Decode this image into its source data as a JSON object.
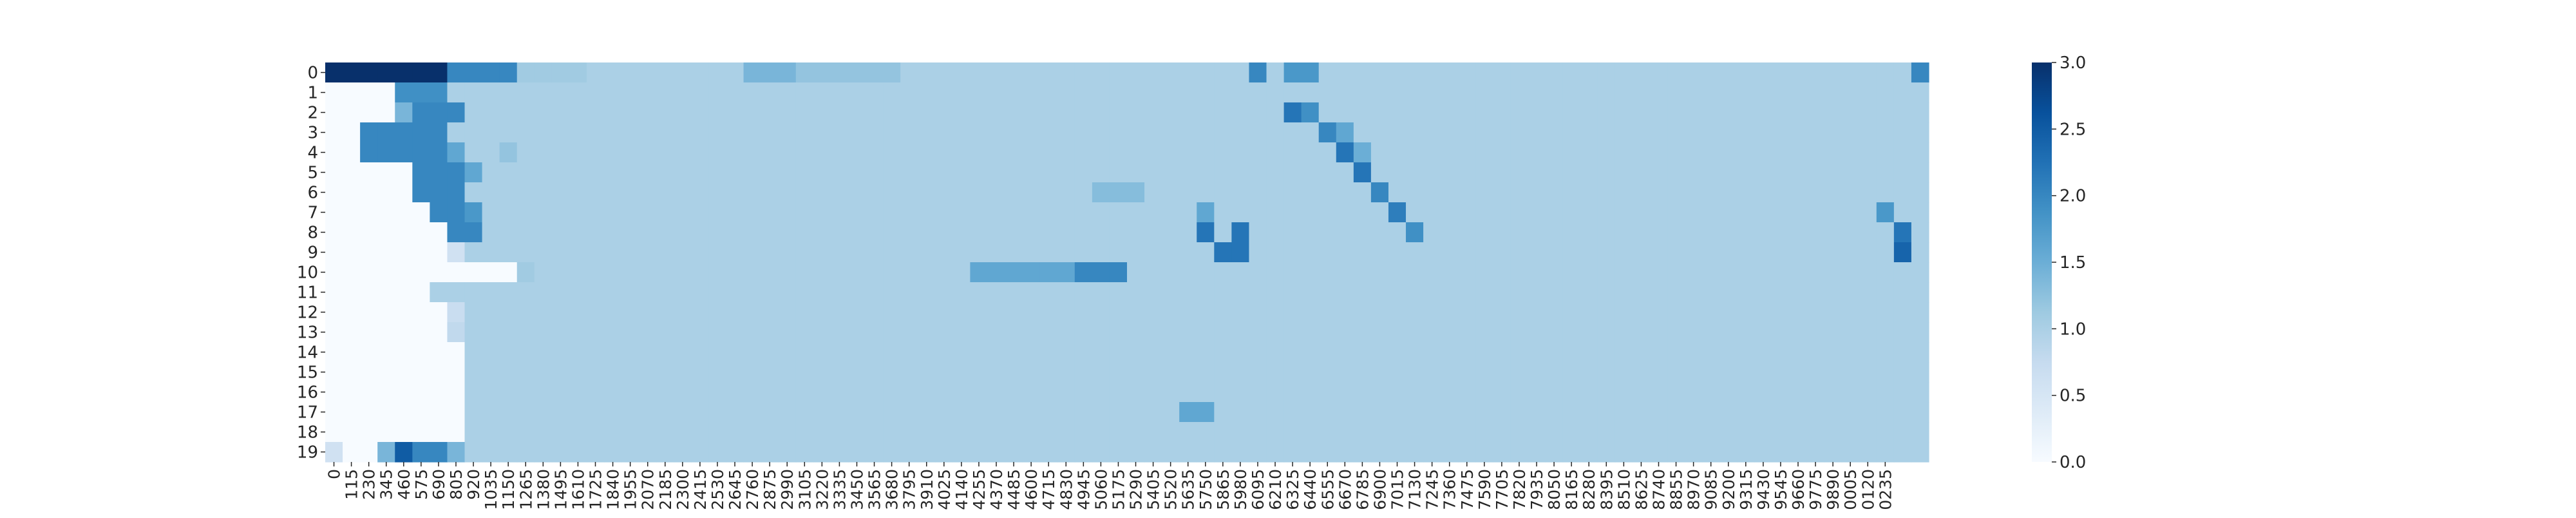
{
  "chart_data": {
    "type": "heatmap",
    "title": "",
    "xlabel": "",
    "ylabel": "",
    "colormap": "Blues",
    "vmin": 0.0,
    "vmax": 3.0,
    "colorbar_ticks": [
      "0.0",
      "0.5",
      "1.0",
      "1.5",
      "2.0",
      "2.5",
      "3.0"
    ],
    "rows": [
      "0",
      "1",
      "2",
      "3",
      "4",
      "5",
      "6",
      "7",
      "8",
      "9",
      "10",
      "11",
      "12",
      "13",
      "14",
      "15",
      "16",
      "17",
      "18",
      "19"
    ],
    "n_cols": 92,
    "x_tick_labels": [
      "0",
      "115",
      "230",
      "345",
      "460",
      "575",
      "690",
      "805",
      "920",
      "1035",
      "1150",
      "1265",
      "1380",
      "1495",
      "1610",
      "1725",
      "1840",
      "1955",
      "2070",
      "2185",
      "2300",
      "2415",
      "2530",
      "2645",
      "2760",
      "2875",
      "2990",
      "3105",
      "3220",
      "3335",
      "3450",
      "3565",
      "3680",
      "3795",
      "3910",
      "4025",
      "4140",
      "4255",
      "4370",
      "4485",
      "4600",
      "4715",
      "4830",
      "4945",
      "5060",
      "5175",
      "5290",
      "5405",
      "5520",
      "5635",
      "5750",
      "5865",
      "5980",
      "6095",
      "6210",
      "6325",
      "6440",
      "6555",
      "6670",
      "6785",
      "6900",
      "7015",
      "7130",
      "7245",
      "7360",
      "7475",
      "7590",
      "7705",
      "7820",
      "7935",
      "8050",
      "8165",
      "8280",
      "8395",
      "8510",
      "8625",
      "8740",
      "8855",
      "8970",
      "9085",
      "9200",
      "9315",
      "9430",
      "9545",
      "9660",
      "9775",
      "9890",
      "0005",
      "0120",
      "0235"
    ],
    "background_value": 1.0,
    "row_segments": [
      [
        [
          0,
          7,
          3.0
        ],
        [
          7,
          11,
          2.0
        ],
        [
          11,
          15,
          1.1
        ],
        [
          24,
          27,
          1.4
        ],
        [
          27,
          33,
          1.2
        ],
        [
          53,
          54,
          2.0
        ],
        [
          55,
          57,
          1.8
        ],
        [
          91,
          92,
          2.0
        ]
      ],
      [
        [
          0,
          4,
          0.0
        ],
        [
          4,
          7,
          1.9
        ],
        [
          7,
          8,
          1.0
        ]
      ],
      [
        [
          0,
          4,
          0.0
        ],
        [
          4,
          5,
          1.4
        ],
        [
          5,
          8,
          2.0
        ],
        [
          55,
          56,
          2.2
        ],
        [
          56,
          57,
          1.9
        ]
      ],
      [
        [
          0,
          2,
          0.0
        ],
        [
          2,
          7,
          2.0
        ],
        [
          57,
          58,
          2.0
        ],
        [
          58,
          59,
          1.6
        ]
      ],
      [
        [
          0,
          2,
          0.0
        ],
        [
          2,
          7,
          2.0
        ],
        [
          7,
          8,
          1.6
        ],
        [
          10,
          11,
          1.2
        ],
        [
          58,
          59,
          2.2
        ],
        [
          59,
          60,
          1.5
        ]
      ],
      [
        [
          0,
          5,
          0.0
        ],
        [
          5,
          8,
          2.0
        ],
        [
          8,
          9,
          1.6
        ],
        [
          59,
          60,
          2.2
        ]
      ],
      [
        [
          0,
          5,
          0.0
        ],
        [
          5,
          8,
          2.0
        ],
        [
          44,
          47,
          1.3
        ],
        [
          60,
          61,
          2.0
        ]
      ],
      [
        [
          0,
          6,
          0.0
        ],
        [
          6,
          8,
          2.0
        ],
        [
          8,
          9,
          1.8
        ],
        [
          50,
          51,
          1.6
        ],
        [
          61,
          62,
          2.1
        ],
        [
          89,
          90,
          1.8
        ]
      ],
      [
        [
          0,
          7,
          0.0
        ],
        [
          7,
          9,
          2.0
        ],
        [
          50,
          51,
          2.2
        ],
        [
          52,
          53,
          2.2
        ],
        [
          62,
          63,
          1.9
        ],
        [
          90,
          91,
          2.2
        ]
      ],
      [
        [
          0,
          7,
          0.0
        ],
        [
          7,
          8,
          0.6
        ],
        [
          8,
          9,
          1.0
        ],
        [
          51,
          52,
          2.2
        ],
        [
          52,
          53,
          2.2
        ],
        [
          90,
          91,
          2.4
        ]
      ],
      [
        [
          0,
          11,
          0.0
        ],
        [
          11,
          12,
          1.1
        ],
        [
          37,
          43,
          1.6
        ],
        [
          43,
          46,
          2.0
        ]
      ],
      [
        [
          0,
          6,
          0.0
        ],
        [
          6,
          7,
          1.0
        ]
      ],
      [
        [
          0,
          7,
          0.0
        ],
        [
          7,
          8,
          0.7
        ]
      ],
      [
        [
          0,
          7,
          0.0
        ],
        [
          7,
          8,
          0.8
        ]
      ],
      [
        [
          0,
          8,
          0.0
        ]
      ],
      [
        [
          0,
          8,
          0.0
        ]
      ],
      [
        [
          0,
          8,
          0.0
        ]
      ],
      [
        [
          0,
          8,
          0.0
        ],
        [
          49,
          51,
          1.6
        ]
      ],
      [
        [
          0,
          8,
          0.0
        ]
      ],
      [
        [
          0,
          1,
          0.6
        ],
        [
          1,
          3,
          0.0
        ],
        [
          3,
          4,
          1.4
        ],
        [
          4,
          5,
          2.5
        ],
        [
          5,
          7,
          2.0
        ],
        [
          7,
          8,
          1.4
        ]
      ]
    ]
  }
}
